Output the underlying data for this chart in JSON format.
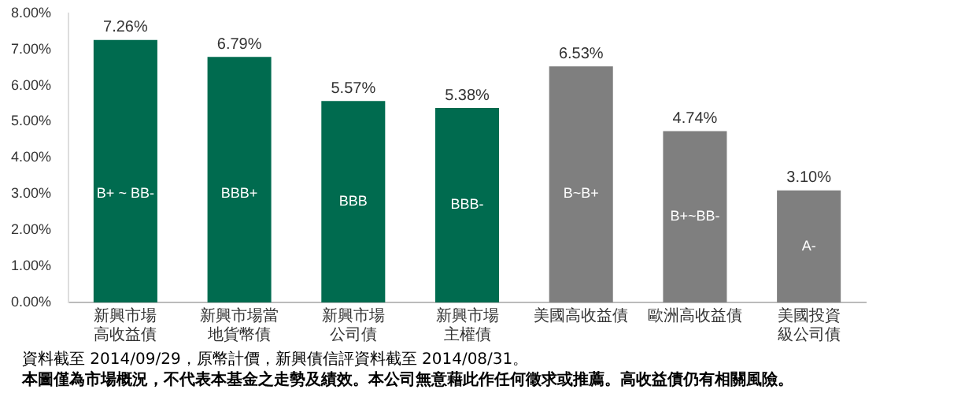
{
  "chart_data": {
    "type": "bar",
    "categories": [
      "新興市場高收益債",
      "新興市場當地貨幣債",
      "新興市場公司債",
      "新興市場主權債",
      "美國高收益債",
      "歐洲高收益債",
      "美國投資級公司債"
    ],
    "values": [
      7.26,
      6.79,
      5.57,
      5.38,
      6.53,
      4.74,
      3.1
    ],
    "colors": [
      "#006b4f",
      "#006b4f",
      "#006b4f",
      "#006b4f",
      "#7f7f7f",
      "#7f7f7f",
      "#7f7f7f"
    ],
    "value_labels": [
      "7.26%",
      "6.79%",
      "5.57%",
      "5.38%",
      "6.53%",
      "4.74%",
      "3.10%"
    ],
    "ylim": [
      0,
      8
    ],
    "yticks": [
      {
        "value": 0,
        "label": "0.00%"
      },
      {
        "value": 1,
        "label": "1.00%"
      },
      {
        "value": 2,
        "label": "2.00%"
      },
      {
        "value": 3,
        "label": "3.00%"
      },
      {
        "value": 4,
        "label": "4.00%"
      },
      {
        "value": 5,
        "label": "5.00%"
      },
      {
        "value": 6,
        "label": "6.00%"
      },
      {
        "value": 7,
        "label": "7.00%"
      },
      {
        "value": 8,
        "label": "8.00%"
      }
    ],
    "grid": false,
    "legend": false,
    "annotations": [
      "B+ ~ BB-",
      "BBB+",
      "BBB",
      "BBB-",
      "B~B+",
      "B+~BB-",
      "A-",
      "資料截至 2014/09/29，原幣計價，新興債信評資料截至 2014/08/31。",
      "本圖僅為市場概況，不代表本基金之走勢及績效。本公司無意藉此作任何徵求或推薦。高收益債仍有相關風險。"
    ]
  }
}
